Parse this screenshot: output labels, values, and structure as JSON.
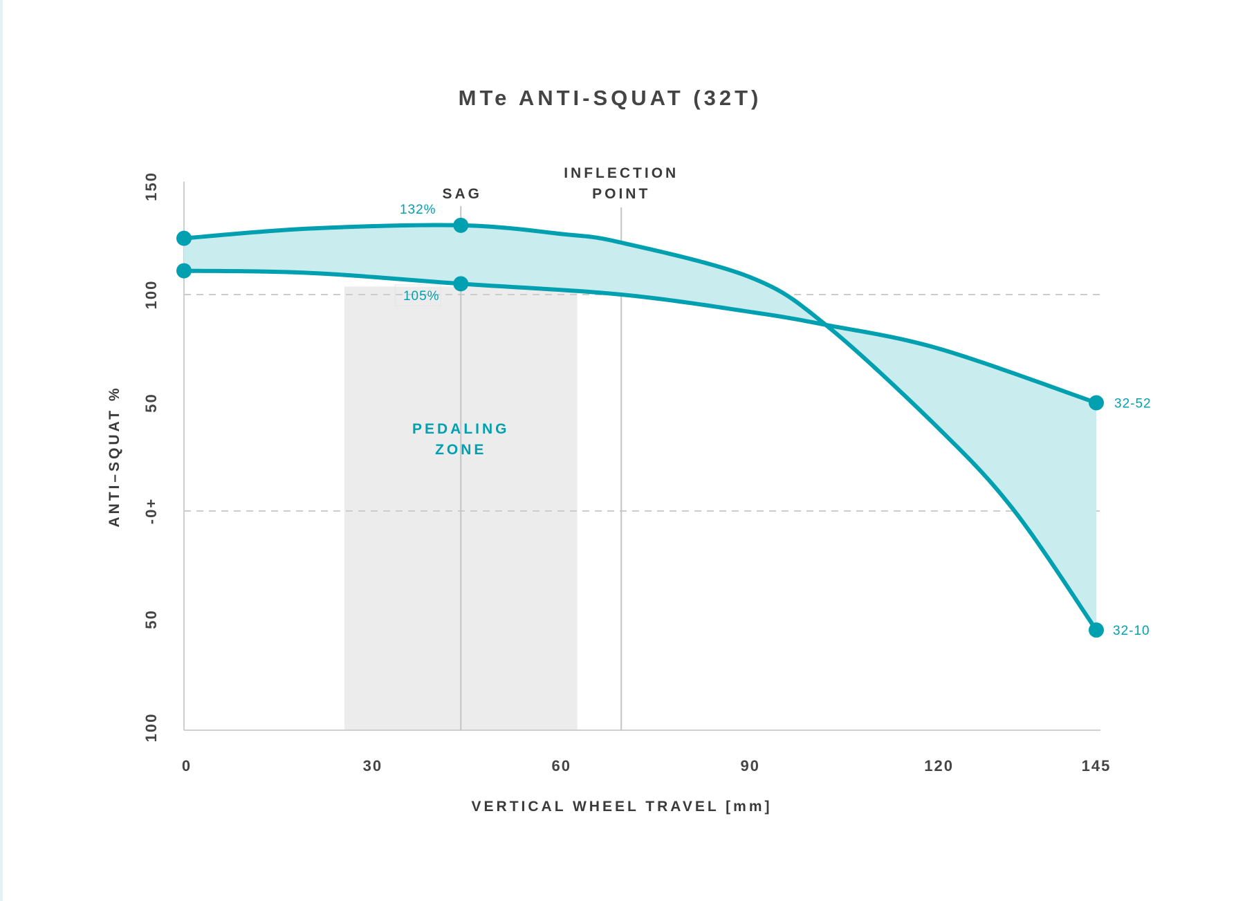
{
  "chart_data": {
    "type": "line",
    "title": "MTe ANTI-SQUAT (32T)",
    "xlabel": "VERTICAL WHEEL TRAVEL [mm]",
    "ylabel": "ANTI–SQUAT %",
    "xlim": [
      0,
      145
    ],
    "ylim": [
      -100,
      150
    ],
    "x_ticks": [
      0,
      30,
      60,
      90,
      120,
      145
    ],
    "x_tick_labels": [
      "0",
      "30",
      "60",
      "90",
      "120",
      "145"
    ],
    "y_ticks": [
      150,
      100,
      50,
      0,
      -50,
      -100
    ],
    "y_tick_labels": [
      "150",
      "100",
      "50",
      "-0+",
      "50",
      "100"
    ],
    "grid": "dashed lines at 100 and 0",
    "series": [
      {
        "name": "32-10",
        "points": [
          [
            0,
            126
          ],
          [
            20,
            130.5
          ],
          [
            44,
            132
          ],
          [
            60,
            128
          ],
          [
            69.5,
            124
          ],
          [
            90,
            108
          ],
          [
            102,
            86
          ],
          [
            120,
            38
          ],
          [
            132,
            0
          ],
          [
            145,
            -55
          ]
        ],
        "markers_at": [
          0,
          44,
          145
        ]
      },
      {
        "name": "32-52",
        "points": [
          [
            0,
            111
          ],
          [
            20,
            110
          ],
          [
            44,
            105
          ],
          [
            69.5,
            100
          ],
          [
            90,
            92
          ],
          [
            102,
            86
          ],
          [
            120,
            75
          ],
          [
            145,
            50
          ]
        ],
        "markers_at": [
          0,
          44,
          145
        ]
      }
    ],
    "fill_between_series": true,
    "annotations": {
      "sag": {
        "label": "SAG",
        "x": 44
      },
      "inflection": {
        "label_line1": "INFLECTION",
        "label_line2": "POINT",
        "x": 69.5
      },
      "pedaling_zone": {
        "label_line1": "PEDALING",
        "label_line2": "ZONE",
        "x_range": [
          25.5,
          62.5
        ]
      },
      "sag_upper_value": "132%",
      "sag_lower_value": "105%"
    },
    "colors": {
      "line": "#00a0b0",
      "fill": "#c9ecee",
      "zone": "#ececec",
      "axis": "#cfcfcf",
      "text": "#444444"
    }
  }
}
